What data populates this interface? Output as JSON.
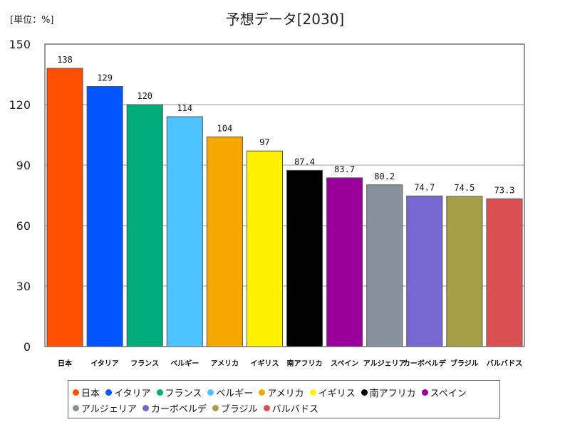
{
  "unit_label": "[単位：%]",
  "chart_data": {
    "type": "bar",
    "title": "予想データ[2030]",
    "xlabel": "",
    "ylabel": "",
    "ylim": [
      0,
      150
    ],
    "yticks": [
      0,
      30,
      60,
      90,
      120,
      150
    ],
    "grid": true,
    "legend_position": "bottom",
    "categories": [
      "日本",
      "イタリア",
      "フランス",
      "ベルギー",
      "アメリカ",
      "イギリス",
      "南アフリカ",
      "スペイン",
      "アルジェリア",
      "カーボベルデ",
      "ブラジル",
      "バルバドス"
    ],
    "values": [
      138,
      129,
      120,
      114,
      104,
      97,
      87.4,
      83.7,
      80.2,
      74.7,
      74.5,
      73.3
    ],
    "value_labels": [
      "138",
      "129",
      "120",
      "114",
      "104",
      "97",
      "87.4",
      "83.7",
      "80.2",
      "74.7",
      "74.5",
      "73.3"
    ],
    "colors": [
      "#ff4f00",
      "#0055ff",
      "#00ad7a",
      "#4dc4ff",
      "#f5a800",
      "#fff200",
      "#000000",
      "#990099",
      "#86919b",
      "#7768d1",
      "#a5a045",
      "#d94f52"
    ]
  }
}
